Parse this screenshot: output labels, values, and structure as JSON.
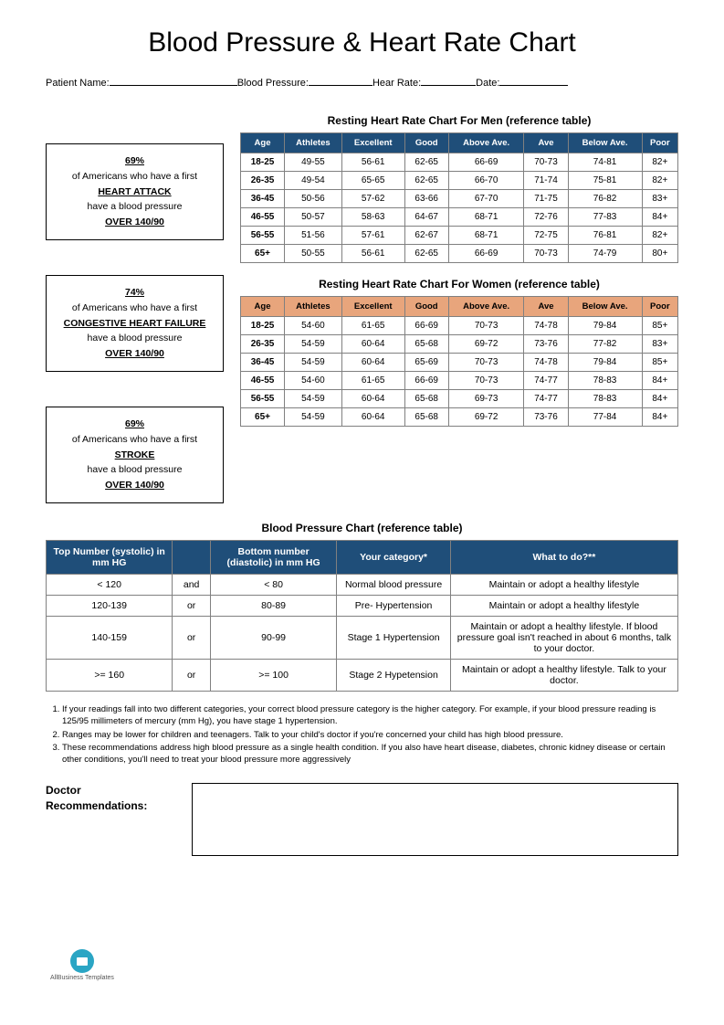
{
  "title": "Blood Pressure & Heart Rate Chart",
  "form": {
    "patient_name": "Patient Name:",
    "blood_pressure": "Blood Pressure:",
    "hear_rate": "Hear Rate:",
    "date": "Date:"
  },
  "stats": [
    {
      "pct": "69%",
      "line1": "of Americans who have a first",
      "cond": "HEART ATTACK",
      "line2": "have a blood pressure",
      "bp": "OVER 140/90"
    },
    {
      "pct": "74%",
      "line1": "of Americans who have a first",
      "cond": "CONGESTIVE HEART FAILURE",
      "line2": "have a blood pressure",
      "bp": "OVER 140/90"
    },
    {
      "pct": "69%",
      "line1": "of Americans who have a first",
      "cond": "STROKE",
      "line2": "have a blood pressure",
      "bp": "OVER 140/90"
    }
  ],
  "hr_men": {
    "title": "Resting Heart Rate Chart For Men (reference table)",
    "header_bg": "#1f4e79",
    "columns": [
      "Age",
      "Athletes",
      "Excellent",
      "Good",
      "Above Ave.",
      "Ave",
      "Below Ave.",
      "Poor"
    ],
    "rows": [
      [
        "18-25",
        "49-55",
        "56-61",
        "62-65",
        "66-69",
        "70-73",
        "74-81",
        "82+"
      ],
      [
        "26-35",
        "49-54",
        "65-65",
        "62-65",
        "66-70",
        "71-74",
        "75-81",
        "82+"
      ],
      [
        "36-45",
        "50-56",
        "57-62",
        "63-66",
        "67-70",
        "71-75",
        "76-82",
        "83+"
      ],
      [
        "46-55",
        "50-57",
        "58-63",
        "64-67",
        "68-71",
        "72-76",
        "77-83",
        "84+"
      ],
      [
        "56-55",
        "51-56",
        "57-61",
        "62-67",
        "68-71",
        "72-75",
        "76-81",
        "82+"
      ],
      [
        "65+",
        "50-55",
        "56-61",
        "62-65",
        "66-69",
        "70-73",
        "74-79",
        "80+"
      ]
    ]
  },
  "hr_women": {
    "title": "Resting Heart Rate Chart For Women (reference table)",
    "header_bg": "#e8a57c",
    "columns": [
      "Age",
      "Athletes",
      "Excellent",
      "Good",
      "Above Ave.",
      "Ave",
      "Below Ave.",
      "Poor"
    ],
    "rows": [
      [
        "18-25",
        "54-60",
        "61-65",
        "66-69",
        "70-73",
        "74-78",
        "79-84",
        "85+"
      ],
      [
        "26-35",
        "54-59",
        "60-64",
        "65-68",
        "69-72",
        "73-76",
        "77-82",
        "83+"
      ],
      [
        "36-45",
        "54-59",
        "60-64",
        "65-69",
        "70-73",
        "74-78",
        "79-84",
        "85+"
      ],
      [
        "46-55",
        "54-60",
        "61-65",
        "66-69",
        "70-73",
        "74-77",
        "78-83",
        "84+"
      ],
      [
        "56-55",
        "54-59",
        "60-64",
        "65-68",
        "69-73",
        "74-77",
        "78-83",
        "84+"
      ],
      [
        "65+",
        "54-59",
        "60-64",
        "65-68",
        "69-72",
        "73-76",
        "77-84",
        "84+"
      ]
    ]
  },
  "bp": {
    "title": "Blood Pressure Chart  (reference table)",
    "header_bg": "#1f4e79",
    "columns": [
      "Top Number (systolic) in mm HG",
      "",
      "Bottom number (diastolic) in mm HG",
      "Your category*",
      "What to do?**"
    ],
    "col_widths": [
      "20%",
      "6%",
      "20%",
      "18%",
      "36%"
    ],
    "rows": [
      [
        "< 120",
        "and",
        "< 80",
        "Normal blood pressure",
        "Maintain or adopt a healthy lifestyle"
      ],
      [
        "120-139",
        "or",
        "80-89",
        "Pre- Hypertension",
        "Maintain or adopt a healthy lifestyle"
      ],
      [
        "140-159",
        "or",
        "90-99",
        "Stage 1 Hypertension",
        "Maintain or adopt a healthy lifestyle. If blood pressure goal isn't reached in about 6 months, talk to your doctor."
      ],
      [
        ">= 160",
        "or",
        ">= 100",
        "Stage 2 Hypetension",
        "Maintain or adopt a healthy lifestyle. Talk to your doctor."
      ]
    ]
  },
  "notes": [
    "If your readings fall into two different categories, your correct blood pressure category is the higher category. For example, if your blood pressure reading is 125/95 millimeters of mercury (mm Hg), you have stage 1 hypertension.",
    "Ranges may be lower for children and teenagers. Talk to your child's doctor if you're concerned your child has high blood pressure.",
    "These recommendations address high blood pressure as a single health condition. If you also have heart disease, diabetes, chronic kidney disease or certain other conditions, you'll need to treat your blood pressure more aggressively"
  ],
  "recs_label": "Doctor Recommendations:",
  "logo_text": "AllBusiness Templates"
}
